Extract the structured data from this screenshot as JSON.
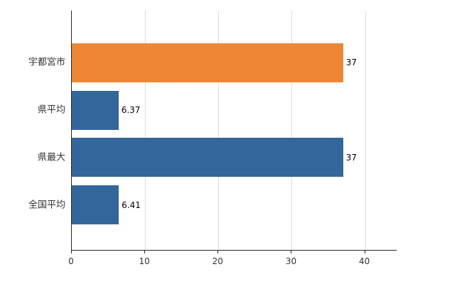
{
  "chart_data": {
    "type": "bar",
    "orientation": "horizontal",
    "title": "",
    "xlabel": "",
    "ylabel": "",
    "categories": [
      "宇都宮市",
      "県平均",
      "県最大",
      "全国平均"
    ],
    "values": [
      37,
      6.37,
      37,
      6.41
    ],
    "value_labels": [
      "37",
      "6.37",
      "37",
      "6.41"
    ],
    "bar_colors": [
      "#ED8733",
      "#33669B",
      "#33669B",
      "#33669B"
    ],
    "xlim": [
      0,
      44.3
    ],
    "xticks": [
      0,
      10,
      20,
      30,
      40
    ],
    "xtick_labels": [
      "0",
      "10",
      "20",
      "30",
      "40"
    ],
    "grid": true,
    "legend": "none",
    "colors": {
      "axis": "#262626",
      "gridline": "#dcdcdc",
      "label_text": "#333333",
      "value_text": "#000000",
      "background": "#ffffff"
    }
  }
}
